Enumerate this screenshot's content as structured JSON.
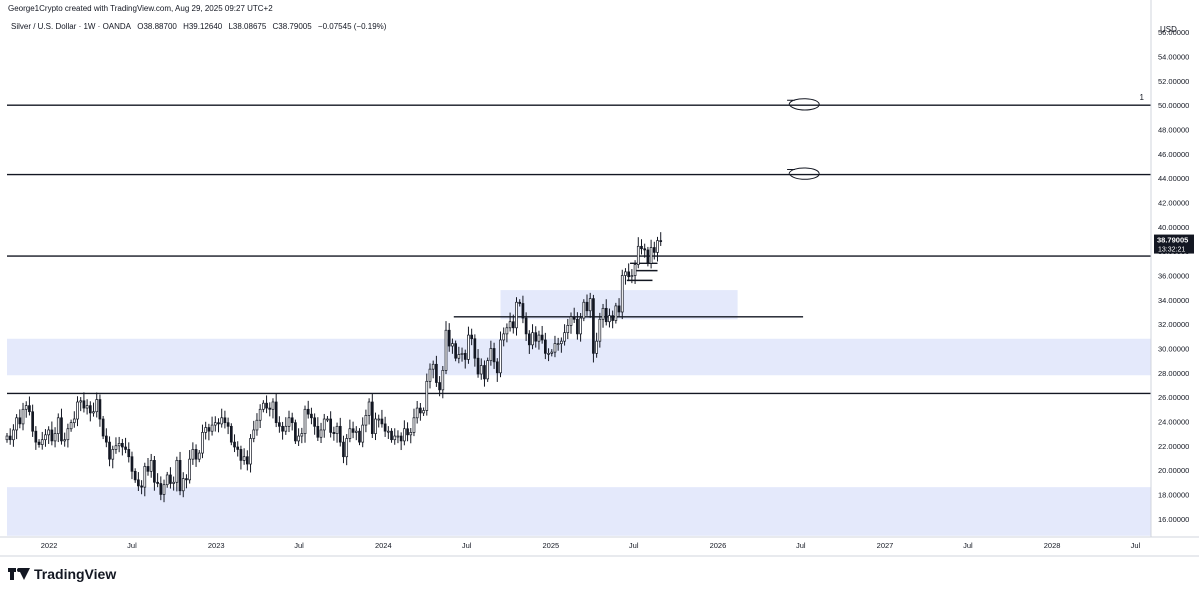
{
  "header": {
    "credit": "George1Crypto created with TradingView.com, Aug 29, 2025 09:27 UTC+2",
    "symbol": "Silver / U.S. Dollar · 1W · OANDA",
    "open": "O38.88700",
    "high": "H39.12640",
    "low": "L38.08675",
    "close": "C38.79005",
    "change": "−0.07545 (−0.19%)"
  },
  "brand": {
    "name": "TradingView",
    "icon": "tradingview-logo-icon"
  },
  "chart_data": {
    "type": "candlestick",
    "currency": "USD",
    "y_scale": "linear",
    "ylim": [
      14.5,
      57.5
    ],
    "y_ticks": [
      "16.00000",
      "18.00000",
      "20.00000",
      "22.00000",
      "24.00000",
      "26.00000",
      "28.00000",
      "30.00000",
      "32.00000",
      "34.00000",
      "36.00000",
      "38.00000",
      "40.00000",
      "42.00000",
      "44.00000",
      "46.00000",
      "48.00000",
      "50.00000",
      "52.00000",
      "54.00000",
      "56.00000"
    ],
    "y_tick_values": [
      16,
      18,
      20,
      22,
      24,
      26,
      28,
      30,
      32,
      34,
      36,
      38,
      40,
      42,
      44,
      46,
      48,
      50,
      52,
      54,
      56
    ],
    "x_ticks": [
      {
        "label": "2022",
        "date": "2022-01-01"
      },
      {
        "label": "Jul",
        "date": "2022-07-01"
      },
      {
        "label": "2023",
        "date": "2023-01-01"
      },
      {
        "label": "Jul",
        "date": "2023-07-01"
      },
      {
        "label": "2024",
        "date": "2024-01-01"
      },
      {
        "label": "Jul",
        "date": "2024-07-01"
      },
      {
        "label": "2025",
        "date": "2025-01-01"
      },
      {
        "label": "Jul",
        "date": "2025-07-01"
      },
      {
        "label": "2026",
        "date": "2026-01-01"
      },
      {
        "label": "Jul",
        "date": "2026-07-01"
      },
      {
        "label": "2027",
        "date": "2027-01-01"
      },
      {
        "label": "Jul",
        "date": "2027-07-01"
      },
      {
        "label": "2028",
        "date": "2028-01-01"
      },
      {
        "label": "Jul",
        "date": "2028-07-01"
      }
    ],
    "x_range": [
      "2021-10-01",
      "2028-08-04"
    ],
    "last_price": "38.79005",
    "countdown": "13:32:21",
    "series_colors": {
      "up": "#131722",
      "down": "#131722",
      "up_fill": "#ffffff",
      "down_fill": "#131722"
    },
    "zone_color": "#e4e9fb",
    "grid": false,
    "candles": [
      {
        "date": "2021-10-01",
        "close": 22.8
      },
      {
        "date": "2021-10-08",
        "close": 22.5
      },
      {
        "date": "2021-10-15",
        "close": 23.3
      },
      {
        "date": "2021-10-22",
        "close": 24.3
      },
      {
        "date": "2021-10-29",
        "close": 23.8
      },
      {
        "date": "2021-11-05",
        "close": 25.0
      },
      {
        "date": "2021-11-12",
        "close": 25.3
      },
      {
        "date": "2021-11-19",
        "close": 24.8
      },
      {
        "date": "2021-11-26",
        "close": 23.2
      },
      {
        "date": "2021-12-03",
        "close": 22.3
      },
      {
        "date": "2021-12-10",
        "close": 22.1
      },
      {
        "date": "2021-12-17",
        "close": 22.5
      },
      {
        "date": "2021-12-24",
        "close": 22.9
      },
      {
        "date": "2021-12-31",
        "close": 23.3
      },
      {
        "date": "2022-01-07",
        "close": 22.4
      },
      {
        "date": "2022-01-14",
        "close": 23.0
      },
      {
        "date": "2022-01-21",
        "close": 24.3
      },
      {
        "date": "2022-01-28",
        "close": 22.4
      },
      {
        "date": "2022-02-04",
        "close": 22.5
      },
      {
        "date": "2022-02-11",
        "close": 23.4
      },
      {
        "date": "2022-02-18",
        "close": 23.9
      },
      {
        "date": "2022-02-25",
        "close": 24.2
      },
      {
        "date": "2022-03-04",
        "close": 25.6
      },
      {
        "date": "2022-03-11",
        "close": 25.7
      },
      {
        "date": "2022-03-18",
        "close": 25.1
      },
      {
        "date": "2022-03-25",
        "close": 25.3
      },
      {
        "date": "2022-04-01",
        "close": 24.7
      },
      {
        "date": "2022-04-08",
        "close": 24.8
      },
      {
        "date": "2022-04-15",
        "close": 25.8
      },
      {
        "date": "2022-04-22",
        "close": 24.2
      },
      {
        "date": "2022-04-29",
        "close": 22.8
      },
      {
        "date": "2022-05-06",
        "close": 22.3
      },
      {
        "date": "2022-05-13",
        "close": 20.9
      },
      {
        "date": "2022-05-20",
        "close": 21.7
      },
      {
        "date": "2022-05-27",
        "close": 22.0
      },
      {
        "date": "2022-06-03",
        "close": 22.2
      },
      {
        "date": "2022-06-10",
        "close": 21.9
      },
      {
        "date": "2022-06-17",
        "close": 21.7
      },
      {
        "date": "2022-06-24",
        "close": 21.1
      },
      {
        "date": "2022-07-01",
        "close": 19.9
      },
      {
        "date": "2022-07-08",
        "close": 19.2
      },
      {
        "date": "2022-07-15",
        "close": 18.7
      },
      {
        "date": "2022-07-22",
        "close": 18.6
      },
      {
        "date": "2022-07-29",
        "close": 20.3
      },
      {
        "date": "2022-08-05",
        "close": 19.9
      },
      {
        "date": "2022-08-12",
        "close": 20.8
      },
      {
        "date": "2022-08-19",
        "close": 19.0
      },
      {
        "date": "2022-08-26",
        "close": 18.9
      },
      {
        "date": "2022-09-02",
        "close": 18.0
      },
      {
        "date": "2022-09-09",
        "close": 18.8
      },
      {
        "date": "2022-09-16",
        "close": 19.6
      },
      {
        "date": "2022-09-23",
        "close": 18.9
      },
      {
        "date": "2022-09-30",
        "close": 19.0
      },
      {
        "date": "2022-10-07",
        "close": 20.8
      },
      {
        "date": "2022-10-14",
        "close": 18.3
      },
      {
        "date": "2022-10-21",
        "close": 19.3
      },
      {
        "date": "2022-10-28",
        "close": 19.2
      },
      {
        "date": "2022-11-04",
        "close": 20.9
      },
      {
        "date": "2022-11-11",
        "close": 21.7
      },
      {
        "date": "2022-11-18",
        "close": 20.9
      },
      {
        "date": "2022-11-25",
        "close": 21.4
      },
      {
        "date": "2022-12-02",
        "close": 23.1
      },
      {
        "date": "2022-12-09",
        "close": 23.5
      },
      {
        "date": "2022-12-16",
        "close": 23.2
      },
      {
        "date": "2022-12-23",
        "close": 23.7
      },
      {
        "date": "2022-12-30",
        "close": 23.9
      },
      {
        "date": "2023-01-06",
        "close": 23.8
      },
      {
        "date": "2023-01-13",
        "close": 24.3
      },
      {
        "date": "2023-01-20",
        "close": 23.9
      },
      {
        "date": "2023-01-27",
        "close": 23.6
      },
      {
        "date": "2023-02-03",
        "close": 22.3
      },
      {
        "date": "2023-02-10",
        "close": 21.9
      },
      {
        "date": "2023-02-17",
        "close": 21.7
      },
      {
        "date": "2023-02-24",
        "close": 20.8
      },
      {
        "date": "2023-03-03",
        "close": 21.1
      },
      {
        "date": "2023-03-10",
        "close": 20.5
      },
      {
        "date": "2023-03-17",
        "close": 22.6
      },
      {
        "date": "2023-03-24",
        "close": 23.3
      },
      {
        "date": "2023-03-31",
        "close": 24.1
      },
      {
        "date": "2023-04-07",
        "close": 25.0
      },
      {
        "date": "2023-04-14",
        "close": 25.5
      },
      {
        "date": "2023-04-21",
        "close": 25.1
      },
      {
        "date": "2023-04-28",
        "close": 25.0
      },
      {
        "date": "2023-05-05",
        "close": 25.6
      },
      {
        "date": "2023-05-12",
        "close": 23.9
      },
      {
        "date": "2023-05-19",
        "close": 23.6
      },
      {
        "date": "2023-05-26",
        "close": 23.2
      },
      {
        "date": "2023-06-02",
        "close": 23.6
      },
      {
        "date": "2023-06-09",
        "close": 24.3
      },
      {
        "date": "2023-06-16",
        "close": 23.9
      },
      {
        "date": "2023-06-23",
        "close": 22.4
      },
      {
        "date": "2023-06-30",
        "close": 22.8
      },
      {
        "date": "2023-07-07",
        "close": 23.0
      },
      {
        "date": "2023-07-14",
        "close": 25.0
      },
      {
        "date": "2023-07-21",
        "close": 24.6
      },
      {
        "date": "2023-07-28",
        "close": 24.3
      },
      {
        "date": "2023-08-04",
        "close": 23.6
      },
      {
        "date": "2023-08-11",
        "close": 22.7
      },
      {
        "date": "2023-08-18",
        "close": 23.3
      },
      {
        "date": "2023-08-25",
        "close": 24.2
      },
      {
        "date": "2023-09-01",
        "close": 24.2
      },
      {
        "date": "2023-09-08",
        "close": 23.1
      },
      {
        "date": "2023-09-15",
        "close": 23.0
      },
      {
        "date": "2023-09-22",
        "close": 23.6
      },
      {
        "date": "2023-09-29",
        "close": 22.3
      },
      {
        "date": "2023-10-06",
        "close": 21.1
      },
      {
        "date": "2023-10-13",
        "close": 22.6
      },
      {
        "date": "2023-10-20",
        "close": 23.4
      },
      {
        "date": "2023-10-27",
        "close": 23.1
      },
      {
        "date": "2023-11-03",
        "close": 23.2
      },
      {
        "date": "2023-11-10",
        "close": 22.3
      },
      {
        "date": "2023-11-17",
        "close": 23.7
      },
      {
        "date": "2023-11-24",
        "close": 24.5
      },
      {
        "date": "2023-12-01",
        "close": 25.6
      },
      {
        "date": "2023-12-08",
        "close": 23.0
      },
      {
        "date": "2023-12-15",
        "close": 24.2
      },
      {
        "date": "2023-12-22",
        "close": 24.2
      },
      {
        "date": "2023-12-29",
        "close": 23.8
      },
      {
        "date": "2024-01-05",
        "close": 23.2
      },
      {
        "date": "2024-01-12",
        "close": 23.2
      },
      {
        "date": "2024-01-19",
        "close": 22.5
      },
      {
        "date": "2024-01-26",
        "close": 22.8
      },
      {
        "date": "2024-02-02",
        "close": 22.8
      },
      {
        "date": "2024-02-09",
        "close": 22.4
      },
      {
        "date": "2024-02-16",
        "close": 23.4
      },
      {
        "date": "2024-02-23",
        "close": 22.9
      },
      {
        "date": "2024-03-01",
        "close": 23.1
      },
      {
        "date": "2024-03-08",
        "close": 24.3
      },
      {
        "date": "2024-03-15",
        "close": 25.1
      },
      {
        "date": "2024-03-22",
        "close": 24.7
      },
      {
        "date": "2024-03-29",
        "close": 24.9
      },
      {
        "date": "2024-04-05",
        "close": 27.3
      },
      {
        "date": "2024-04-12",
        "close": 28.3
      },
      {
        "date": "2024-04-19",
        "close": 28.7
      },
      {
        "date": "2024-04-26",
        "close": 27.2
      },
      {
        "date": "2024-05-03",
        "close": 26.6
      },
      {
        "date": "2024-05-10",
        "close": 28.2
      },
      {
        "date": "2024-05-17",
        "close": 31.5
      },
      {
        "date": "2024-05-24",
        "close": 30.2
      },
      {
        "date": "2024-05-31",
        "close": 30.4
      },
      {
        "date": "2024-06-07",
        "close": 29.2
      },
      {
        "date": "2024-06-14",
        "close": 29.5
      },
      {
        "date": "2024-06-21",
        "close": 29.6
      },
      {
        "date": "2024-06-28",
        "close": 29.1
      },
      {
        "date": "2024-07-05",
        "close": 31.1
      },
      {
        "date": "2024-07-12",
        "close": 30.8
      },
      {
        "date": "2024-07-19",
        "close": 29.2
      },
      {
        "date": "2024-07-26",
        "close": 27.9
      },
      {
        "date": "2024-08-02",
        "close": 28.6
      },
      {
        "date": "2024-08-09",
        "close": 27.5
      },
      {
        "date": "2024-08-16",
        "close": 29.0
      },
      {
        "date": "2024-08-23",
        "close": 30.0
      },
      {
        "date": "2024-08-30",
        "close": 28.9
      },
      {
        "date": "2024-09-06",
        "close": 28.0
      },
      {
        "date": "2024-09-13",
        "close": 30.7
      },
      {
        "date": "2024-09-20",
        "close": 31.2
      },
      {
        "date": "2024-09-27",
        "close": 31.7
      },
      {
        "date": "2024-10-04",
        "close": 32.2
      },
      {
        "date": "2024-10-11",
        "close": 31.7
      },
      {
        "date": "2024-10-18",
        "close": 33.8
      },
      {
        "date": "2024-10-25",
        "close": 33.7
      },
      {
        "date": "2024-11-01",
        "close": 32.5
      },
      {
        "date": "2024-11-08",
        "close": 31.2
      },
      {
        "date": "2024-11-15",
        "close": 30.3
      },
      {
        "date": "2024-11-22",
        "close": 31.3
      },
      {
        "date": "2024-11-29",
        "close": 30.6
      },
      {
        "date": "2024-12-06",
        "close": 31.1
      },
      {
        "date": "2024-12-13",
        "close": 30.7
      },
      {
        "date": "2024-12-20",
        "close": 29.6
      },
      {
        "date": "2024-12-27",
        "close": 29.6
      },
      {
        "date": "2025-01-03",
        "close": 29.7
      },
      {
        "date": "2025-01-10",
        "close": 30.4
      },
      {
        "date": "2025-01-17",
        "close": 30.4
      },
      {
        "date": "2025-01-24",
        "close": 30.6
      },
      {
        "date": "2025-01-31",
        "close": 31.3
      },
      {
        "date": "2025-02-07",
        "close": 31.9
      },
      {
        "date": "2025-02-14",
        "close": 32.6
      },
      {
        "date": "2025-02-21",
        "close": 32.4
      },
      {
        "date": "2025-02-28",
        "close": 31.2
      },
      {
        "date": "2025-03-07",
        "close": 32.5
      },
      {
        "date": "2025-03-14",
        "close": 33.8
      },
      {
        "date": "2025-03-21",
        "close": 33.1
      },
      {
        "date": "2025-03-28",
        "close": 34.1
      },
      {
        "date": "2025-04-04",
        "close": 29.6
      },
      {
        "date": "2025-04-11",
        "close": 30.6
      },
      {
        "date": "2025-04-18",
        "close": 32.4
      },
      {
        "date": "2025-04-25",
        "close": 33.3
      },
      {
        "date": "2025-05-02",
        "close": 32.2
      },
      {
        "date": "2025-05-09",
        "close": 32.7
      },
      {
        "date": "2025-05-16",
        "close": 32.3
      },
      {
        "date": "2025-05-23",
        "close": 33.5
      },
      {
        "date": "2025-05-30",
        "close": 33.0
      },
      {
        "date": "2025-06-06",
        "close": 36.0
      },
      {
        "date": "2025-06-13",
        "close": 36.3
      },
      {
        "date": "2025-06-20",
        "close": 35.9
      },
      {
        "date": "2025-06-27",
        "close": 36.0
      },
      {
        "date": "2025-07-04",
        "close": 36.9
      },
      {
        "date": "2025-07-11",
        "close": 38.4
      },
      {
        "date": "2025-07-18",
        "close": 38.2
      },
      {
        "date": "2025-07-25",
        "close": 38.1
      },
      {
        "date": "2025-08-01",
        "close": 37.0
      },
      {
        "date": "2025-08-08",
        "close": 38.3
      },
      {
        "date": "2025-08-15",
        "close": 37.9
      },
      {
        "date": "2025-08-22",
        "close": 38.87
      },
      {
        "date": "2025-08-29",
        "close": 38.79
      }
    ],
    "zones": [
      {
        "from_date": "2021-10-01",
        "to_date": "2028-08-04",
        "low": 14.6,
        "high": 18.6
      },
      {
        "from_date": "2021-10-01",
        "to_date": "2028-08-04",
        "low": 27.8,
        "high": 30.8
      },
      {
        "from_date": "2024-09-13",
        "to_date": "2026-02-13",
        "low": 32.4,
        "high": 34.8
      }
    ],
    "levels": [
      {
        "price": 50.0,
        "from_date": "2021-10-01",
        "to_date": "2028-08-04",
        "label": "1"
      },
      {
        "price": 44.3,
        "from_date": "2021-10-01",
        "to_date": "2028-08-04"
      },
      {
        "price": 37.6,
        "from_date": "2021-10-01",
        "to_date": "2028-08-04"
      },
      {
        "price": 26.3,
        "from_date": "2021-10-01",
        "to_date": "2028-08-04"
      },
      {
        "price": 32.6,
        "from_date": "2024-06-03",
        "to_date": "2026-07-06"
      },
      {
        "price": 35.6,
        "from_date": "2025-06-16",
        "to_date": "2025-08-11"
      },
      {
        "price": 37.0,
        "from_date": "2025-06-23",
        "to_date": "2025-08-22"
      },
      {
        "price": 36.4,
        "from_date": "2025-07-07",
        "to_date": "2025-08-22"
      }
    ],
    "ellipses": [
      {
        "date": "2026-07-06",
        "price": 50.0
      },
      {
        "date": "2026-07-06",
        "price": 44.3
      }
    ]
  }
}
